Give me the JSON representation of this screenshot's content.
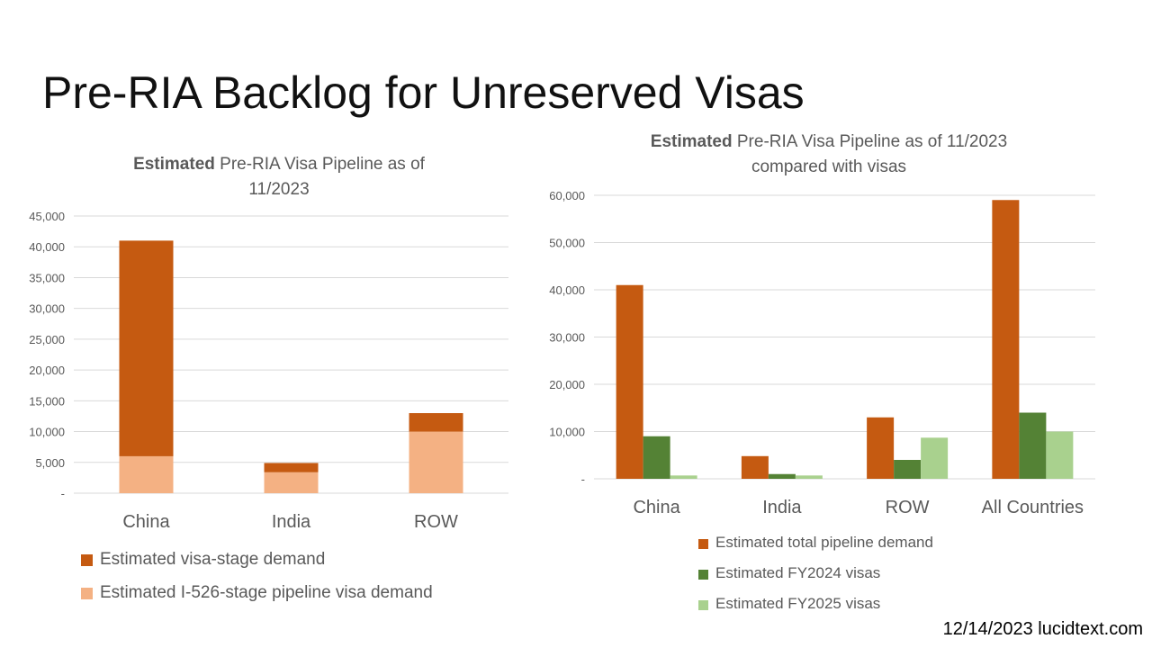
{
  "slide": {
    "title": "Pre-RIA Backlog for Unreserved Visas",
    "footer": "12/14/2023 lucidtext.com"
  },
  "chart_data": [
    {
      "type": "bar",
      "stacked": true,
      "title_bold": "Estimated",
      "title_rest_line1": " Pre-RIA Visa Pipeline as of",
      "title_line2": "11/2023",
      "categories": [
        "China",
        "India",
        "ROW"
      ],
      "ylim": [
        0,
        45000
      ],
      "yticks": [
        0,
        5000,
        10000,
        15000,
        20000,
        25000,
        30000,
        35000,
        40000,
        45000
      ],
      "ytick_labels": [
        "-",
        "5,000",
        "10,000",
        "15,000",
        "20,000",
        "25,000",
        "30,000",
        "35,000",
        "40,000",
        "45,000"
      ],
      "grid": true,
      "legend": "bottom",
      "series": [
        {
          "name": "Estimated I-526-stage pipeline visa demand",
          "color": "#F4B183",
          "values": [
            6000,
            3400,
            10000
          ]
        },
        {
          "name": "Estimated visa-stage demand",
          "color": "#C55A11",
          "values": [
            35000,
            1500,
            3000
          ]
        }
      ]
    },
    {
      "type": "bar",
      "stacked": false,
      "title_bold": "Estimated",
      "title_rest_line1": " Pre-RIA Visa Pipeline as of 11/2023",
      "title_line2": "compared with visas",
      "categories": [
        "China",
        "India",
        "ROW",
        "All Countries"
      ],
      "ylim": [
        0,
        60000
      ],
      "yticks": [
        0,
        10000,
        20000,
        30000,
        40000,
        50000,
        60000
      ],
      "ytick_labels": [
        "-",
        "10,000",
        "20,000",
        "30,000",
        "40,000",
        "50,000",
        "60,000"
      ],
      "grid": true,
      "legend": "bottom",
      "series": [
        {
          "name": "Estimated total pipeline demand",
          "color": "#C55A11",
          "values": [
            41000,
            4800,
            13000,
            59000
          ]
        },
        {
          "name": "Estimated FY2024 visas",
          "color": "#548235",
          "values": [
            9000,
            1000,
            4000,
            14000
          ]
        },
        {
          "name": "Estimated FY2025 visas",
          "color": "#A9D18E",
          "values": [
            700,
            700,
            8700,
            10000
          ]
        }
      ]
    }
  ]
}
